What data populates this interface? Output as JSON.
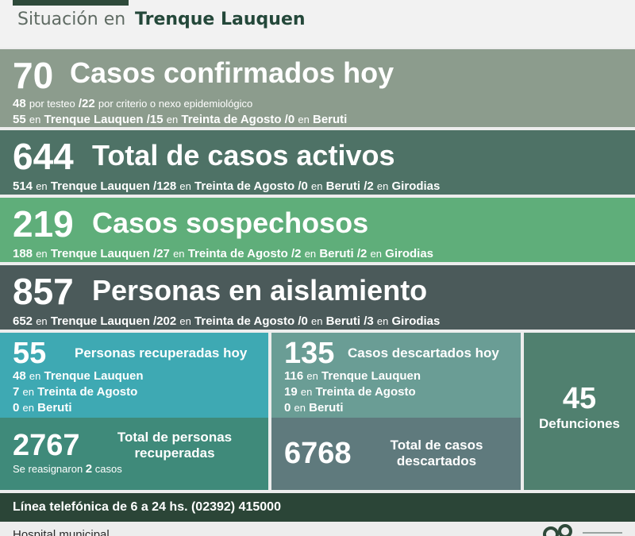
{
  "header": {
    "prefix": "Situación en",
    "city": "Trenque Lauquen"
  },
  "confirmados": {
    "number": "70",
    "title": "Casos confirmados hoy",
    "line1": {
      "a_num": "48",
      "a_text": "por testeo",
      "b_num": "/22",
      "b_text": "por criterio o nexo epidemiológico"
    },
    "line2": [
      {
        "num": "55",
        "en": "en",
        "place": "Trenque Lauquen"
      },
      {
        "num": "/15",
        "en": "en",
        "place": "Treinta de Agosto"
      },
      {
        "num": "/0",
        "en": "en",
        "place": "Beruti"
      }
    ]
  },
  "activos": {
    "number": "644",
    "title": "Total de casos activos",
    "line": [
      {
        "num": "514",
        "en": "en",
        "place": "Trenque Lauquen"
      },
      {
        "num": "/128",
        "en": "en",
        "place": "Treinta de Agosto"
      },
      {
        "num": "/0",
        "en": "en",
        "place": "Beruti"
      },
      {
        "num": "/2",
        "en": "en",
        "place": "Girodias"
      }
    ]
  },
  "sospechosos": {
    "number": "219",
    "title": "Casos sospechosos",
    "line": [
      {
        "num": "188",
        "en": "en",
        "place": "Trenque Lauquen"
      },
      {
        "num": "/27",
        "en": "en",
        "place": "Treinta de Agosto"
      },
      {
        "num": "/2",
        "en": "en",
        "place": "Beruti"
      },
      {
        "num": "/2",
        "en": "en",
        "place": "Girodias"
      }
    ]
  },
  "aislamiento": {
    "number": "857",
    "title": "Personas en aislamiento",
    "line": [
      {
        "num": "652",
        "en": "en",
        "place": "Trenque Lauquen"
      },
      {
        "num": "/202",
        "en": "en",
        "place": "Treinta de Agosto"
      },
      {
        "num": "/0",
        "en": "en",
        "place": "Beruti"
      },
      {
        "num": "/3",
        "en": "en",
        "place": "Girodias"
      }
    ]
  },
  "recuperadas": {
    "number": "55",
    "title": "Personas recuperadas hoy",
    "rows": [
      {
        "num": "48",
        "en": "en",
        "place": "Trenque Lauquen"
      },
      {
        "num": "7",
        "en": "en",
        "place": "Treinta de Agosto"
      },
      {
        "num": "0",
        "en": "en",
        "place": "Beruti"
      }
    ],
    "total_number": "2767",
    "total_title1": "Total de personas",
    "total_title2": "recuperadas",
    "note_a": "Se reasignaron",
    "note_num": "2",
    "note_b": "casos"
  },
  "descartados": {
    "number": "135",
    "title": "Casos descartados hoy",
    "rows": [
      {
        "num": "116",
        "en": "en",
        "place": "Trenque Lauquen"
      },
      {
        "num": "19",
        "en": "en",
        "place": "Treinta de Agosto"
      },
      {
        "num": "0",
        "en": "en",
        "place": "Beruti"
      }
    ],
    "total_number": "6768",
    "total_title1": "Total de casos",
    "total_title2": "descartados"
  },
  "defunciones": {
    "number": "45",
    "label": "Defunciones"
  },
  "phone": "Línea telefónica de 6 a 24 hs. (02392) 415000",
  "footer": {
    "hospital": "Hospital municipal"
  },
  "icons": {
    "logo": "municipal-logo"
  }
}
